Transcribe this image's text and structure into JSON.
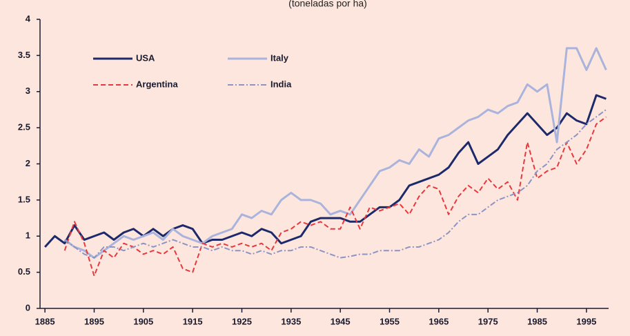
{
  "chart_data": {
    "type": "line",
    "subtitle": "(toneladas por ha)",
    "x": [
      1885,
      1887,
      1889,
      1891,
      1893,
      1895,
      1897,
      1899,
      1901,
      1903,
      1905,
      1907,
      1909,
      1911,
      1913,
      1915,
      1917,
      1919,
      1921,
      1923,
      1925,
      1927,
      1929,
      1931,
      1933,
      1935,
      1937,
      1939,
      1941,
      1943,
      1945,
      1947,
      1949,
      1951,
      1953,
      1955,
      1957,
      1959,
      1961,
      1963,
      1965,
      1967,
      1969,
      1971,
      1973,
      1975,
      1977,
      1979,
      1981,
      1983,
      1985,
      1987,
      1989,
      1991,
      1993,
      1995,
      1997,
      1999
    ],
    "series": [
      {
        "name": "USA",
        "color": "#1c2a6b",
        "width": 3,
        "dash": "solid",
        "values": [
          0.85,
          1.0,
          0.9,
          1.15,
          0.95,
          1.0,
          1.05,
          0.95,
          1.05,
          1.1,
          1.0,
          1.1,
          1.0,
          1.1,
          1.15,
          1.1,
          0.9,
          0.95,
          0.95,
          1.0,
          1.05,
          1.0,
          1.1,
          1.05,
          0.9,
          0.95,
          1.0,
          1.2,
          1.25,
          1.25,
          1.25,
          1.2,
          1.2,
          1.3,
          1.4,
          1.4,
          1.5,
          1.7,
          1.75,
          1.8,
          1.85,
          1.95,
          2.15,
          2.3,
          2.0,
          2.1,
          2.2,
          2.4,
          2.55,
          2.7,
          2.55,
          2.4,
          2.5,
          2.7,
          2.6,
          2.55,
          2.95,
          2.9
        ]
      },
      {
        "name": "Italy",
        "color": "#a9b3dc",
        "width": 3,
        "dash": "solid",
        "values": [
          null,
          null,
          0.95,
          0.85,
          0.8,
          0.7,
          0.8,
          0.9,
          1.0,
          0.95,
          1.0,
          1.05,
          0.95,
          1.1,
          1.0,
          0.95,
          0.9,
          1.0,
          1.05,
          1.1,
          1.3,
          1.25,
          1.35,
          1.3,
          1.5,
          1.6,
          1.5,
          1.5,
          1.45,
          1.3,
          1.35,
          1.3,
          1.5,
          1.7,
          1.9,
          1.95,
          2.05,
          2.0,
          2.2,
          2.1,
          2.35,
          2.4,
          2.5,
          2.6,
          2.65,
          2.75,
          2.7,
          2.8,
          2.85,
          3.1,
          3.0,
          3.1,
          2.3,
          3.6,
          3.6,
          3.3,
          3.6,
          3.3
        ]
      },
      {
        "name": "Argentina",
        "color": "#e8383d",
        "width": 2,
        "dash": "dashed",
        "values": [
          null,
          null,
          0.8,
          1.2,
          0.9,
          0.45,
          0.8,
          0.7,
          0.9,
          0.85,
          0.75,
          0.8,
          0.75,
          0.85,
          0.55,
          0.5,
          0.9,
          0.85,
          0.9,
          0.85,
          0.9,
          0.85,
          0.9,
          0.8,
          1.05,
          1.1,
          1.2,
          1.15,
          1.2,
          1.1,
          1.1,
          1.4,
          1.1,
          1.4,
          1.35,
          1.4,
          1.45,
          1.3,
          1.55,
          1.7,
          1.65,
          1.3,
          1.55,
          1.7,
          1.6,
          1.8,
          1.65,
          1.75,
          1.5,
          2.3,
          1.8,
          1.9,
          1.95,
          2.3,
          2.0,
          2.2,
          2.55,
          2.65
        ]
      },
      {
        "name": "India",
        "color": "#8b94c4",
        "width": 2,
        "dash": "dashdot",
        "values": [
          null,
          null,
          0.95,
          0.85,
          0.75,
          0.7,
          0.85,
          0.85,
          0.8,
          0.85,
          0.9,
          0.85,
          0.9,
          0.95,
          0.9,
          0.85,
          0.85,
          0.8,
          0.85,
          0.8,
          0.8,
          0.75,
          0.8,
          0.75,
          0.8,
          0.8,
          0.85,
          0.85,
          0.8,
          0.75,
          0.7,
          0.72,
          0.75,
          0.75,
          0.8,
          0.8,
          0.8,
          0.85,
          0.85,
          0.9,
          0.95,
          1.05,
          1.2,
          1.3,
          1.3,
          1.4,
          1.5,
          1.55,
          1.6,
          1.7,
          1.9,
          2.0,
          2.2,
          2.3,
          2.4,
          2.55,
          2.65,
          2.75
        ]
      }
    ],
    "xlim": [
      1884,
      1999.5
    ],
    "xticks": [
      1885,
      1895,
      1905,
      1915,
      1925,
      1935,
      1945,
      1955,
      1965,
      1975,
      1985,
      1995
    ],
    "ylim": [
      0,
      4
    ],
    "yticks": [
      0,
      0.5,
      1,
      1.5,
      2,
      2.5,
      3,
      3.5,
      4
    ],
    "grid": false,
    "legend": "upper left"
  }
}
